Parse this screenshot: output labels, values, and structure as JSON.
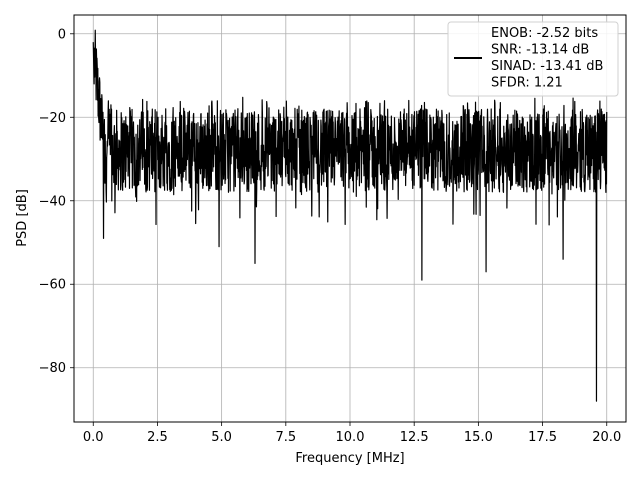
{
  "chart_data": {
    "type": "line",
    "title": "",
    "xlabel": "Frequency [MHz]",
    "ylabel": "PSD [dB]",
    "xlim": [
      -0.75,
      20.75
    ],
    "ylim": [
      -93,
      4.5
    ],
    "xticks": [
      0.0,
      2.5,
      5.0,
      7.5,
      10.0,
      12.5,
      15.0,
      17.5,
      20.0
    ],
    "xtick_labels": [
      "0.0",
      "2.5",
      "5.0",
      "7.5",
      "10.0",
      "12.5",
      "15.0",
      "17.5",
      "20.0"
    ],
    "yticks": [
      0,
      -20,
      -40,
      -60,
      -80
    ],
    "ytick_labels": [
      "0",
      "−20",
      "−40",
      "−60",
      "−80"
    ],
    "grid": true,
    "legend_position": "top-right",
    "series": [
      {
        "name": "ENOB: -2.52 bits\nSNR: -13.14 dB\nSINAD: -13.41 dB\nSFDR: 1.21",
        "color": "#000000",
        "x_range": [
          0,
          20
        ],
        "noise_floor_db": -28,
        "noise_band_db": [
          -38,
          -18
        ],
        "dc_peak_db": 0,
        "deep_dips": [
          {
            "x": 0.4,
            "y": -49
          },
          {
            "x": 4.9,
            "y": -51
          },
          {
            "x": 6.3,
            "y": -55
          },
          {
            "x": 12.8,
            "y": -59
          },
          {
            "x": 15.3,
            "y": -57
          },
          {
            "x": 18.3,
            "y": -54
          },
          {
            "x": 19.6,
            "y": -88
          }
        ]
      }
    ]
  }
}
